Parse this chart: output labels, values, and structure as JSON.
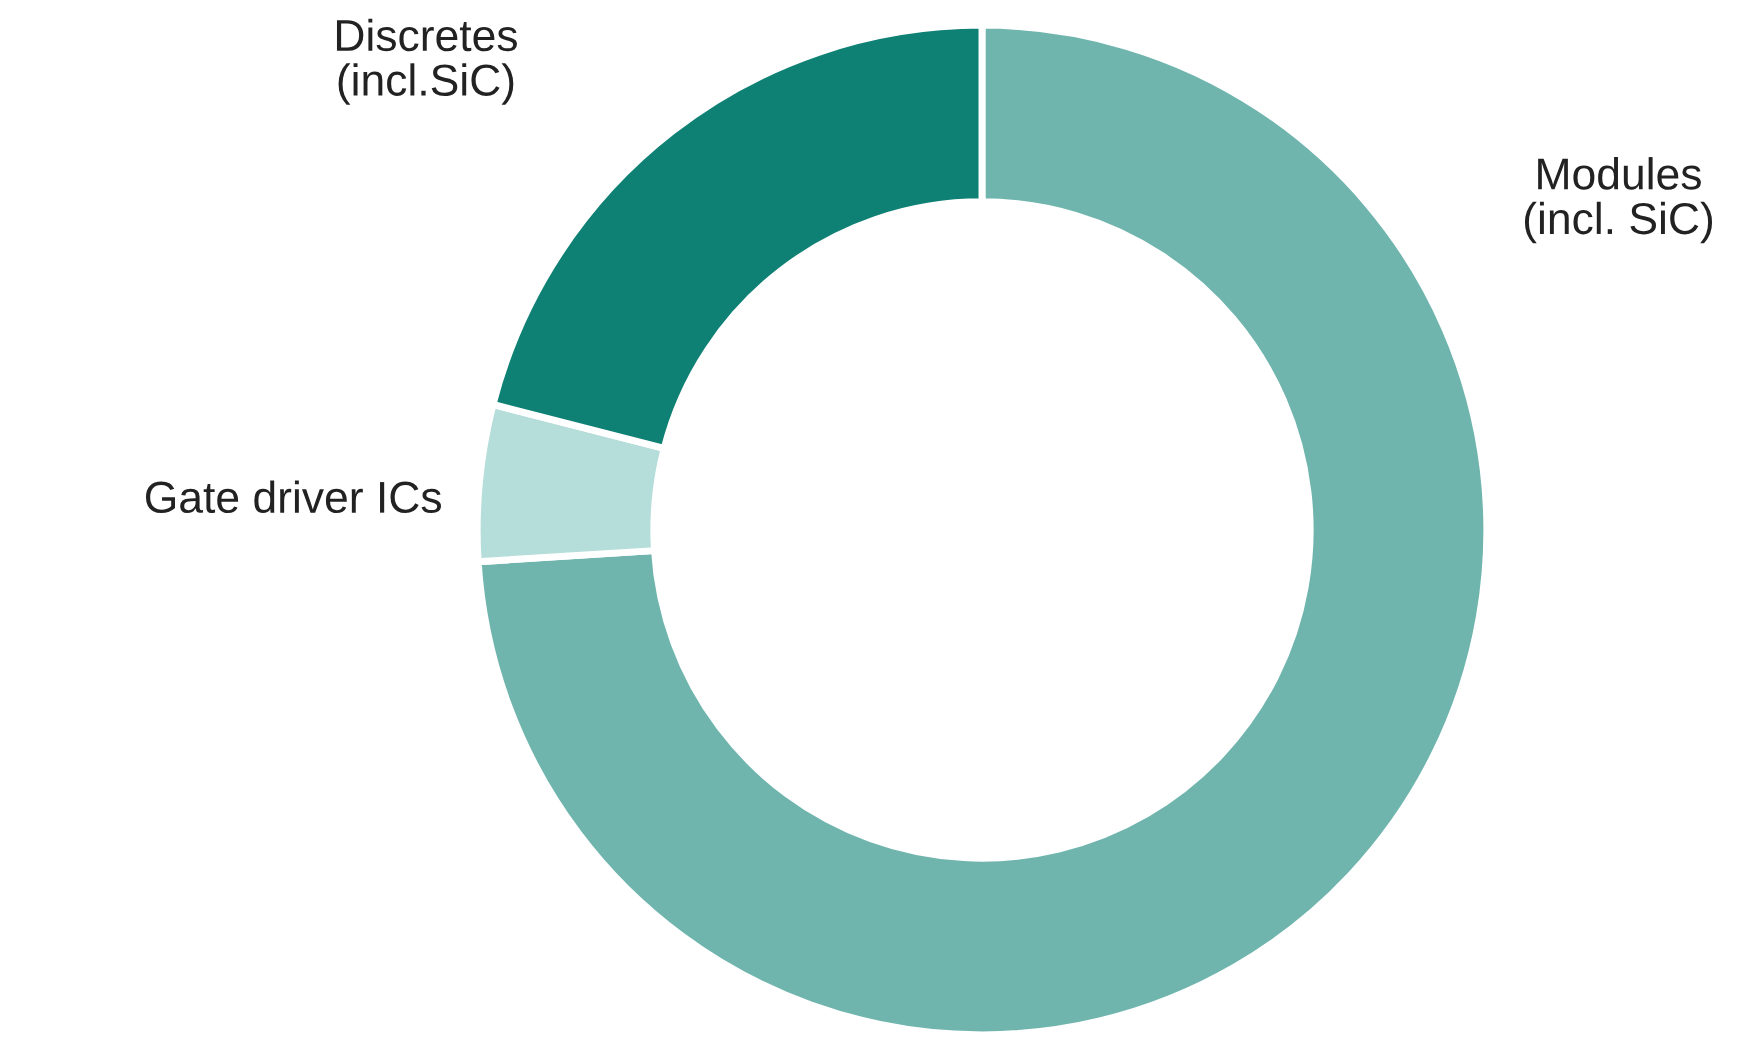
{
  "chart_data": {
    "type": "donut",
    "categories": [
      "Modules\n(incl. SiC)",
      "Gate driver ICs",
      "Discretes\n(incl.SiC)"
    ],
    "values": [
      74,
      5,
      21
    ],
    "colors": [
      "#6fb5ae",
      "#b5deda",
      "#0e8174"
    ]
  }
}
